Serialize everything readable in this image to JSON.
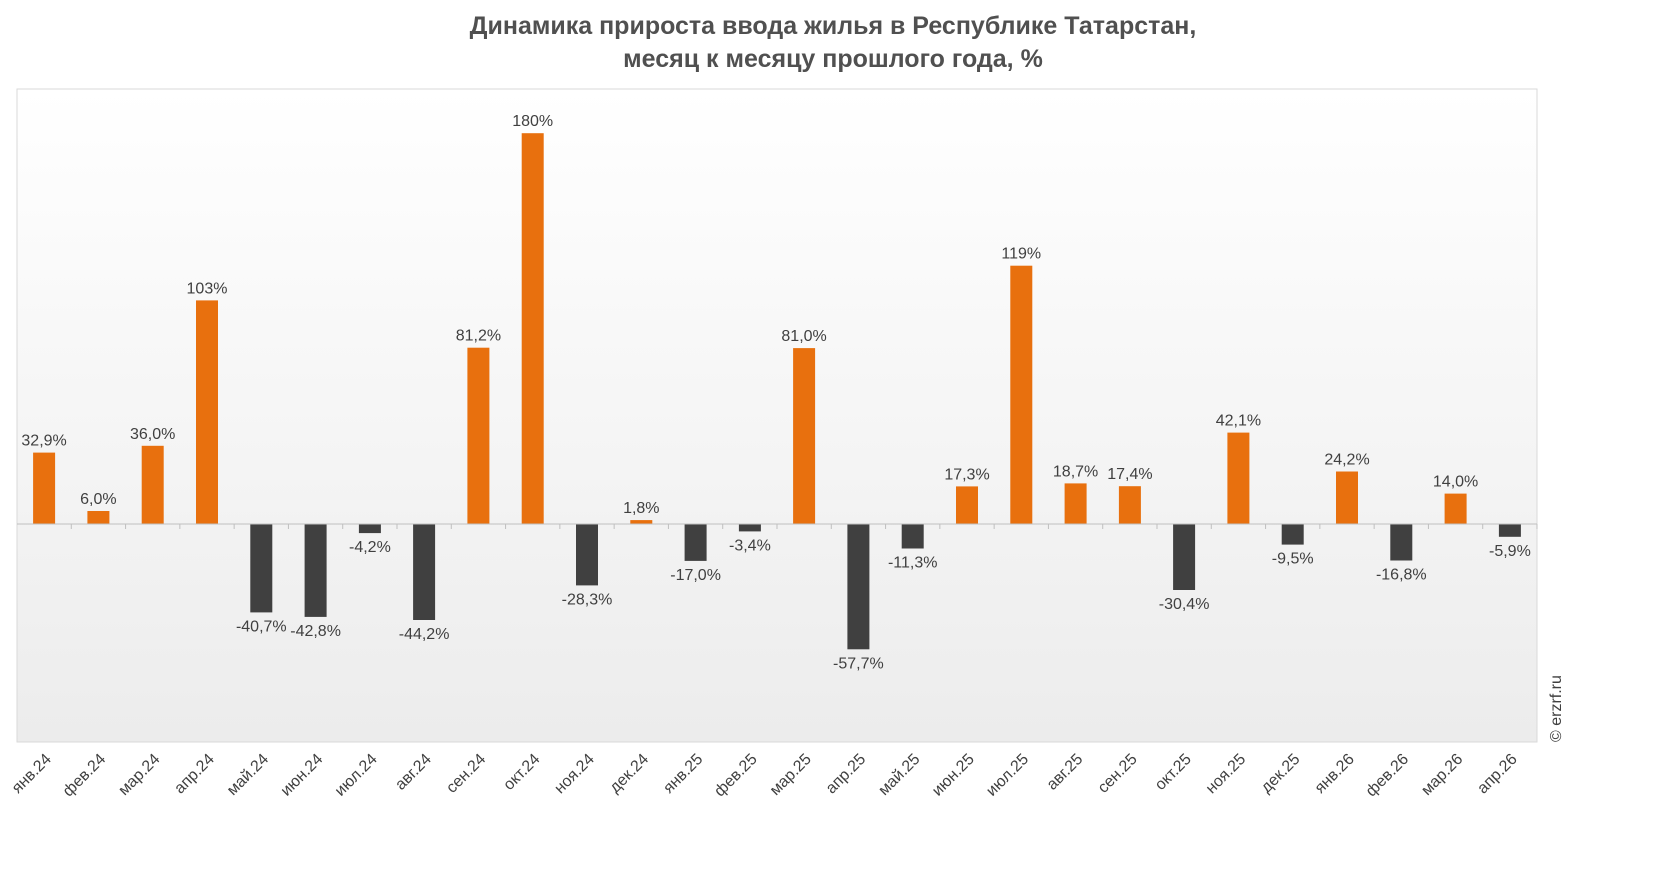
{
  "chart_data": {
    "type": "bar",
    "title_line1": "Динамика прироста ввода жилья в Республике Татарстан,",
    "title_line2": "месяц к месяцу прошлого года, %",
    "categories": [
      "янв.24",
      "фев.24",
      "мар.24",
      "апр.24",
      "май.24",
      "июн.24",
      "июл.24",
      "авг.24",
      "сен.24",
      "окт.24",
      "ноя.24",
      "дек.24",
      "янв.25",
      "фев.25",
      "мар.25",
      "апр.25",
      "май.25",
      "июн.25",
      "июл.25",
      "авг.25",
      "сен.25",
      "окт.25",
      "ноя.25",
      "дек.25",
      "янв.26",
      "фев.26",
      "мар.26",
      "апр.26"
    ],
    "values": [
      32.9,
      6.0,
      36.0,
      103,
      -40.7,
      -42.8,
      -4.2,
      -44.2,
      81.2,
      180,
      -28.3,
      1.8,
      -17.0,
      -3.4,
      81.0,
      -57.7,
      -11.3,
      17.3,
      119,
      18.7,
      17.4,
      -30.4,
      42.1,
      -9.5,
      24.2,
      -16.8,
      14.0,
      -5.9
    ],
    "labels": [
      "32,9%",
      "6,0%",
      "36,0%",
      "103%",
      "-40,7%",
      "-42,8%",
      "-4,2%",
      "-44,2%",
      "81,2%",
      "180%",
      "-28,3%",
      "1,8%",
      "-17,0%",
      "-3,4%",
      "81,0%",
      "-57,7%",
      "-11,3%",
      "17,3%",
      "119%",
      "18,7%",
      "17,4%",
      "-30,4%",
      "42,1%",
      "-9,5%",
      "24,2%",
      "-16,8%",
      "14,0%",
      "-5,9%"
    ],
    "ylim": [
      -100,
      200
    ],
    "grid": false,
    "colors": {
      "positive": "#E8700E",
      "negative": "#404040"
    },
    "watermark": "© erzrf.ru"
  }
}
